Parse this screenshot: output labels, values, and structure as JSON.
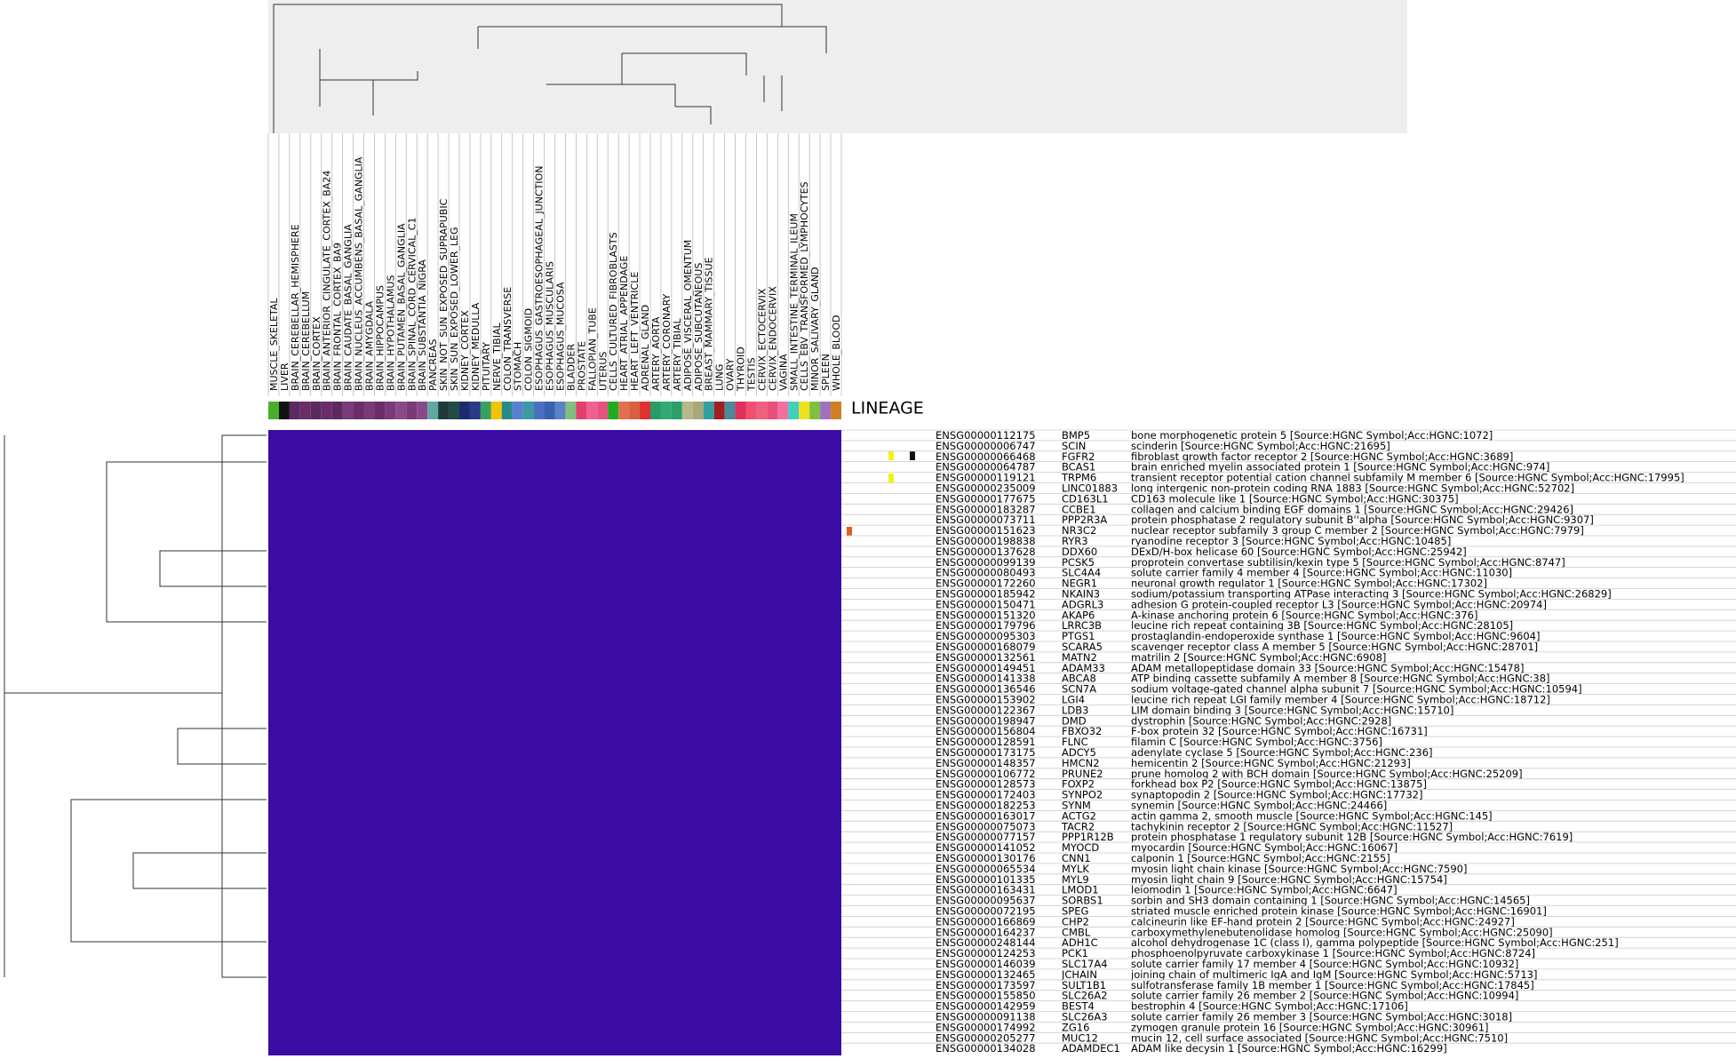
{
  "lineage_label": "LINEAGE",
  "columns": [
    {
      "label": "MUSCLE_SKELETAL",
      "color": "#4caf2a"
    },
    {
      "label": "LIVER",
      "color": "#111111"
    },
    {
      "label": "BRAIN_CEREBELLAR_HEMISPHERE",
      "color": "#5b2a5e"
    },
    {
      "label": "BRAIN_CEREBELLUM",
      "color": "#6a2d6a"
    },
    {
      "label": "BRAIN_CORTEX",
      "color": "#5b2a5e"
    },
    {
      "label": "BRAIN_ANTERIOR_CINGULATE_CORTEX_BA24",
      "color": "#6a2d6a"
    },
    {
      "label": "BRAIN_FRONTAL_CORTEX_BA9",
      "color": "#5b2a5e"
    },
    {
      "label": "BRAIN_CAUDATE_BASAL_GANGLIA",
      "color": "#7a3a7a"
    },
    {
      "label": "BRAIN_NUCLEUS_ACCUMBENS_BASAL_GANGLIA",
      "color": "#6a2d6a"
    },
    {
      "label": "BRAIN_AMYGDALA",
      "color": "#7a3a7a"
    },
    {
      "label": "BRAIN_HIPPOCAMPUS",
      "color": "#6a2d6a"
    },
    {
      "label": "BRAIN_HYPOTHALAMUS",
      "color": "#7a3a7a"
    },
    {
      "label": "BRAIN_PUTAMEN_BASAL_GANGLIA",
      "color": "#8a4a8a"
    },
    {
      "label": "BRAIN_SPINAL_CORD_CERVICAL_C1",
      "color": "#7a3a7a"
    },
    {
      "label": "BRAIN_SUBSTANTIA_NIGRA",
      "color": "#8a4a8a"
    },
    {
      "label": "PANCREAS",
      "color": "#5fa8a0"
    },
    {
      "label": "SKIN_NOT_SUN_EXPOSED_SUPRAPUBIC",
      "color": "#1f3a3a"
    },
    {
      "label": "SKIN_SUN_EXPOSED_LOWER_LEG",
      "color": "#244a44"
    },
    {
      "label": "KIDNEY_CORTEX",
      "color": "#1e2a6e"
    },
    {
      "label": "KIDNEY_MEDULLA",
      "color": "#2a3a8a"
    },
    {
      "label": "PITUITARY",
      "color": "#3aa060"
    },
    {
      "label": "NERVE_TIBIAL",
      "color": "#f2c400"
    },
    {
      "label": "COLON_TRANSVERSE",
      "color": "#2a8a8a"
    },
    {
      "label": "STOMACH",
      "color": "#5a7fd0"
    },
    {
      "label": "COLON_SIGMOID",
      "color": "#3a9aa0"
    },
    {
      "label": "ESOPHAGUS_GASTROESOPHAGEAL_JUNCTION",
      "color": "#4a70c0"
    },
    {
      "label": "ESOPHAGUS_MUSCULARIS",
      "color": "#3a60b0"
    },
    {
      "label": "ESOPHAGUS_MUCOSA",
      "color": "#5a80c8"
    },
    {
      "label": "BLADDER",
      "color": "#7fc07f"
    },
    {
      "label": "PROSTATE",
      "color": "#e0406a"
    },
    {
      "label": "FALLOPIAN_TUBE",
      "color": "#f06090"
    },
    {
      "label": "UTERUS",
      "color": "#e85080"
    },
    {
      "label": "CELLS_CULTURED_FIBROBLASTS",
      "color": "#22aa22"
    },
    {
      "label": "HEART_ATRIAL_APPENDAGE",
      "color": "#e07050"
    },
    {
      "label": "HEART_LEFT_VENTRICLE",
      "color": "#d86040"
    },
    {
      "label": "ADRENAL_GLAND",
      "color": "#e03030"
    },
    {
      "label": "ARTERY_AORTA",
      "color": "#2a9a6a"
    },
    {
      "label": "ARTERY_CORONARY",
      "color": "#30aa70"
    },
    {
      "label": "ARTERY_TIBIAL",
      "color": "#28a068"
    },
    {
      "label": "ADIPOSE_VISCERAL_OMENTUM",
      "color": "#b8b888"
    },
    {
      "label": "ADIPOSE_SUBCUTANEOUS",
      "color": "#a8a878"
    },
    {
      "label": "BREAST_MAMMARY_TISSUE",
      "color": "#30a0a0"
    },
    {
      "label": "LUNG",
      "color": "#a02020"
    },
    {
      "label": "OVARY",
      "color": "#4a8a9a"
    },
    {
      "label": "THYROID",
      "color": "#e03060"
    },
    {
      "label": "TESTIS",
      "color": "#f05070"
    },
    {
      "label": "CERVIX_ECTOCERVIX",
      "color": "#f06080"
    },
    {
      "label": "CERVIX_ENDOCERVIX",
      "color": "#e85078"
    },
    {
      "label": "VAGINA",
      "color": "#f070a0"
    },
    {
      "label": "SMALL_INTESTINE_TERMINAL_ILEUM",
      "color": "#40d0c0"
    },
    {
      "label": "CELLS_EBV_TRANSFORMED_LYMPHOCYTES",
      "color": "#f0e020"
    },
    {
      "label": "MINOR_SALIVARY_GLAND",
      "color": "#80c040"
    },
    {
      "label": "SPLEEN",
      "color": "#a070c0"
    },
    {
      "label": "WHOLE_BLOOD",
      "color": "#d08020"
    }
  ],
  "rows": [
    {
      "id": "ENSG00000112175",
      "symbol": "BMP5",
      "description": "bone morphogenetic protein 5 [Source:HGNC Symbol;Acc:HGNC:1072]"
    },
    {
      "id": "ENSG00000006747",
      "symbol": "SCIN",
      "description": "scinderin [Source:HGNC Symbol;Acc:HGNC:21695]"
    },
    {
      "id": "ENSG00000066468",
      "symbol": "FGFR2",
      "description": "fibroblast growth factor receptor 2 [Source:HGNC Symbol;Acc:HGNC:3689]"
    },
    {
      "id": "ENSG00000064787",
      "symbol": "BCAS1",
      "description": "brain enriched myelin associated protein 1 [Source:HGNC Symbol;Acc:HGNC:974]"
    },
    {
      "id": "ENSG00000119121",
      "symbol": "TRPM6",
      "description": "transient receptor potential cation channel subfamily M member 6 [Source:HGNC Symbol;Acc:HGNC:17995]"
    },
    {
      "id": "ENSG00000235009",
      "symbol": "LINC01883",
      "description": "long intergenic non-protein coding RNA 1883 [Source:HGNC Symbol;Acc:HGNC:52702]"
    },
    {
      "id": "ENSG00000177675",
      "symbol": "CD163L1",
      "description": "CD163 molecule like 1 [Source:HGNC Symbol;Acc:HGNC:30375]"
    },
    {
      "id": "ENSG00000183287",
      "symbol": "CCBE1",
      "description": "collagen and calcium binding EGF domains 1 [Source:HGNC Symbol;Acc:HGNC:29426]"
    },
    {
      "id": "ENSG00000073711",
      "symbol": "PPP2R3A",
      "description": "protein phosphatase 2 regulatory subunit B''alpha [Source:HGNC Symbol;Acc:HGNC:9307]"
    },
    {
      "id": "ENSG00000151623",
      "symbol": "NR3C2",
      "description": "nuclear receptor subfamily 3 group C member 2 [Source:HGNC Symbol;Acc:HGNC:7979]"
    },
    {
      "id": "ENSG00000198838",
      "symbol": "RYR3",
      "description": "ryanodine receptor 3 [Source:HGNC Symbol;Acc:HGNC:10485]"
    },
    {
      "id": "ENSG00000137628",
      "symbol": "DDX60",
      "description": "DExD/H-box helicase 60 [Source:HGNC Symbol;Acc:HGNC:25942]"
    },
    {
      "id": "ENSG00000099139",
      "symbol": "PCSK5",
      "description": "proprotein convertase subtilisin/kexin type 5 [Source:HGNC Symbol;Acc:HGNC:8747]"
    },
    {
      "id": "ENSG00000080493",
      "symbol": "SLC4A4",
      "description": "solute carrier family 4 member 4 [Source:HGNC Symbol;Acc:HGNC:11030]"
    },
    {
      "id": "ENSG00000172260",
      "symbol": "NEGR1",
      "description": "neuronal growth regulator 1 [Source:HGNC Symbol;Acc:HGNC:17302]"
    },
    {
      "id": "ENSG00000185942",
      "symbol": "NKAIN3",
      "description": "sodium/potassium transporting ATPase interacting 3 [Source:HGNC Symbol;Acc:HGNC:26829]"
    },
    {
      "id": "ENSG00000150471",
      "symbol": "ADGRL3",
      "description": "adhesion G protein-coupled receptor L3 [Source:HGNC Symbol;Acc:HGNC:20974]"
    },
    {
      "id": "ENSG00000151320",
      "symbol": "AKAP6",
      "description": "A-kinase anchoring protein 6 [Source:HGNC Symbol;Acc:HGNC:376]"
    },
    {
      "id": "ENSG00000179796",
      "symbol": "LRRC3B",
      "description": "leucine rich repeat containing 3B [Source:HGNC Symbol;Acc:HGNC:28105]"
    },
    {
      "id": "ENSG00000095303",
      "symbol": "PTGS1",
      "description": "prostaglandin-endoperoxide synthase 1 [Source:HGNC Symbol;Acc:HGNC:9604]"
    },
    {
      "id": "ENSG00000168079",
      "symbol": "SCARA5",
      "description": "scavenger receptor class A member 5 [Source:HGNC Symbol;Acc:HGNC:28701]"
    },
    {
      "id": "ENSG00000132561",
      "symbol": "MATN2",
      "description": "matrilin 2 [Source:HGNC Symbol;Acc:HGNC:6908]"
    },
    {
      "id": "ENSG00000149451",
      "symbol": "ADAM33",
      "description": "ADAM metallopeptidase domain 33 [Source:HGNC Symbol;Acc:HGNC:15478]"
    },
    {
      "id": "ENSG00000141338",
      "symbol": "ABCA8",
      "description": "ATP binding cassette subfamily A member 8 [Source:HGNC Symbol;Acc:HGNC:38]"
    },
    {
      "id": "ENSG00000136546",
      "symbol": "SCN7A",
      "description": "sodium voltage-gated channel alpha subunit 7 [Source:HGNC Symbol;Acc:HGNC:10594]"
    },
    {
      "id": "ENSG00000153902",
      "symbol": "LGI4",
      "description": "leucine rich repeat LGI family member 4 [Source:HGNC Symbol;Acc:HGNC:18712]"
    },
    {
      "id": "ENSG00000122367",
      "symbol": "LDB3",
      "description": "LIM domain binding 3 [Source:HGNC Symbol;Acc:HGNC:15710]"
    },
    {
      "id": "ENSG00000198947",
      "symbol": "DMD",
      "description": "dystrophin [Source:HGNC Symbol;Acc:HGNC:2928]"
    },
    {
      "id": "ENSG00000156804",
      "symbol": "FBXO32",
      "description": "F-box protein 32 [Source:HGNC Symbol;Acc:HGNC:16731]"
    },
    {
      "id": "ENSG00000128591",
      "symbol": "FLNC",
      "description": "filamin C [Source:HGNC Symbol;Acc:HGNC:3756]"
    },
    {
      "id": "ENSG00000173175",
      "symbol": "ADCY5",
      "description": "adenylate cyclase 5 [Source:HGNC Symbol;Acc:HGNC:236]"
    },
    {
      "id": "ENSG00000148357",
      "symbol": "HMCN2",
      "description": "hemicentin 2 [Source:HGNC Symbol;Acc:HGNC:21293]"
    },
    {
      "id": "ENSG00000106772",
      "symbol": "PRUNE2",
      "description": "prune homolog 2 with BCH domain [Source:HGNC Symbol;Acc:HGNC:25209]"
    },
    {
      "id": "ENSG00000128573",
      "symbol": "FOXP2",
      "description": "forkhead box P2 [Source:HGNC Symbol;Acc:HGNC:13875]"
    },
    {
      "id": "ENSG00000172403",
      "symbol": "SYNPO2",
      "description": "synaptopodin 2 [Source:HGNC Symbol;Acc:HGNC:17732]"
    },
    {
      "id": "ENSG00000182253",
      "symbol": "SYNM",
      "description": "synemin [Source:HGNC Symbol;Acc:HGNC:24466]"
    },
    {
      "id": "ENSG00000163017",
      "symbol": "ACTG2",
      "description": "actin gamma 2, smooth muscle [Source:HGNC Symbol;Acc:HGNC:145]"
    },
    {
      "id": "ENSG00000075073",
      "symbol": "TACR2",
      "description": "tachykinin receptor 2 [Source:HGNC Symbol;Acc:HGNC:11527]"
    },
    {
      "id": "ENSG00000077157",
      "symbol": "PPP1R12B",
      "description": "protein phosphatase 1 regulatory subunit 12B [Source:HGNC Symbol;Acc:HGNC:7619]"
    },
    {
      "id": "ENSG00000141052",
      "symbol": "MYOCD",
      "description": "myocardin [Source:HGNC Symbol;Acc:HGNC:16067]"
    },
    {
      "id": "ENSG00000130176",
      "symbol": "CNN1",
      "description": "calponin 1 [Source:HGNC Symbol;Acc:HGNC:2155]"
    },
    {
      "id": "ENSG00000065534",
      "symbol": "MYLK",
      "description": "myosin light chain kinase [Source:HGNC Symbol;Acc:HGNC:7590]"
    },
    {
      "id": "ENSG00000101335",
      "symbol": "MYL9",
      "description": "myosin light chain 9 [Source:HGNC Symbol;Acc:HGNC:15754]"
    },
    {
      "id": "ENSG00000163431",
      "symbol": "LMOD1",
      "description": "leiomodin 1 [Source:HGNC Symbol;Acc:HGNC:6647]"
    },
    {
      "id": "ENSG00000095637",
      "symbol": "SORBS1",
      "description": "sorbin and SH3 domain containing 1 [Source:HGNC Symbol;Acc:HGNC:14565]"
    },
    {
      "id": "ENSG00000072195",
      "symbol": "SPEG",
      "description": "striated muscle enriched protein kinase [Source:HGNC Symbol;Acc:HGNC:16901]"
    },
    {
      "id": "ENSG00000166869",
      "symbol": "CHP2",
      "description": "calcineurin like EF-hand protein 2 [Source:HGNC Symbol;Acc:HGNC:24927]"
    },
    {
      "id": "ENSG00000164237",
      "symbol": "CMBL",
      "description": "carboxymethylenebutenolidase homolog [Source:HGNC Symbol;Acc:HGNC:25090]"
    },
    {
      "id": "ENSG00000248144",
      "symbol": "ADH1C",
      "description": "alcohol dehydrogenase 1C (class I), gamma polypeptide [Source:HGNC Symbol;Acc:HGNC:251]"
    },
    {
      "id": "ENSG00000124253",
      "symbol": "PCK1",
      "description": "phosphoenolpyruvate carboxykinase 1 [Source:HGNC Symbol;Acc:HGNC:8724]"
    },
    {
      "id": "ENSG00000146039",
      "symbol": "SLC17A4",
      "description": "solute carrier family 17 member 4 [Source:HGNC Symbol;Acc:HGNC:10932]"
    },
    {
      "id": "ENSG00000132465",
      "symbol": "JCHAIN",
      "description": "joining chain of multimeric IgA and IgM [Source:HGNC Symbol;Acc:HGNC:5713]"
    },
    {
      "id": "ENSG00000173597",
      "symbol": "SULT1B1",
      "description": "sulfotransferase family 1B member 1 [Source:HGNC Symbol;Acc:HGNC:17845]"
    },
    {
      "id": "ENSG00000155850",
      "symbol": "SLC26A2",
      "description": "solute carrier family 26 member 2 [Source:HGNC Symbol;Acc:HGNC:10994]"
    },
    {
      "id": "ENSG00000142959",
      "symbol": "BEST4",
      "description": "bestrophin 4 [Source:HGNC Symbol;Acc:HGNC:17106]"
    },
    {
      "id": "ENSG00000091138",
      "symbol": "SLC26A3",
      "description": "solute carrier family 26 member 3 [Source:HGNC Symbol;Acc:HGNC:3018]"
    },
    {
      "id": "ENSG00000174992",
      "symbol": "ZG16",
      "description": "zymogen granule protein 16 [Source:HGNC Symbol;Acc:HGNC:30961]"
    },
    {
      "id": "ENSG00000205277",
      "symbol": "MUC12",
      "description": "mucin 12, cell surface associated [Source:HGNC Symbol;Acc:HGNC:7510]"
    },
    {
      "id": "ENSG00000134028",
      "symbol": "ADAMDEC1",
      "description": "ADAM like decysin 1 [Source:HGNC Symbol;Acc:HGNC:16299]"
    }
  ]
}
